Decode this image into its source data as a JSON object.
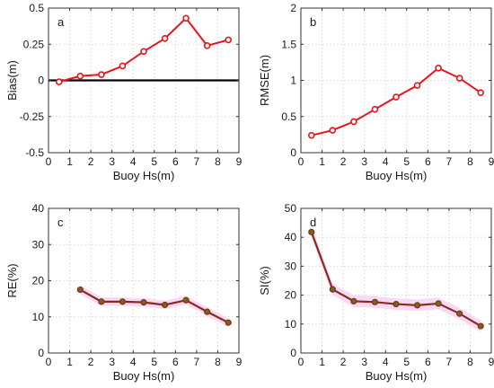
{
  "colors": {
    "red_line": "#e8141b",
    "brown_line": "#8b2a1c",
    "olive_marker": "#6b6b1a",
    "band": "#f7d4f5",
    "zero_line": "#000000"
  },
  "chart_data": [
    {
      "type": "line",
      "panel_label": "a",
      "xlabel": "Buoy Hs(m)",
      "ylabel": "Bias(m)",
      "xlim": [
        0,
        9
      ],
      "ylim": [
        -0.5,
        0.5
      ],
      "xticks": [
        0,
        1,
        2,
        3,
        4,
        5,
        6,
        7,
        8,
        9
      ],
      "yticks": [
        -0.5,
        -0.25,
        0,
        0.25,
        0.5
      ],
      "ytick_labels": [
        "-0.5",
        "-0.25",
        "0",
        "0.25",
        "0.5"
      ],
      "grid": true,
      "zero_line": true,
      "style": "red",
      "x": [
        0.5,
        1.5,
        2.5,
        3.5,
        4.5,
        5.5,
        6.5,
        7.5,
        8.5
      ],
      "y": [
        -0.01,
        0.03,
        0.04,
        0.1,
        0.2,
        0.29,
        0.43,
        0.24,
        0.28
      ]
    },
    {
      "type": "line",
      "panel_label": "b",
      "xlabel": "Buoy Hs(m)",
      "ylabel": "RMSE(m)",
      "xlim": [
        0,
        9
      ],
      "ylim": [
        0,
        2
      ],
      "xticks": [
        0,
        1,
        2,
        3,
        4,
        5,
        6,
        7,
        8,
        9
      ],
      "yticks": [
        0,
        0.5,
        1,
        1.5,
        2
      ],
      "ytick_labels": [
        "0",
        "0.5",
        "1",
        "1.5",
        "2"
      ],
      "grid": true,
      "style": "red",
      "x": [
        0.5,
        1.5,
        2.5,
        3.5,
        4.5,
        5.5,
        6.5,
        7.5,
        8.5
      ],
      "y": [
        0.24,
        0.31,
        0.43,
        0.6,
        0.77,
        0.93,
        1.17,
        1.03,
        0.83
      ]
    },
    {
      "type": "line",
      "panel_label": "c",
      "xlabel": "Buoy Hs(m)",
      "ylabel": "RE(%)",
      "xlim": [
        0,
        9
      ],
      "ylim": [
        0,
        40
      ],
      "xticks": [
        0,
        1,
        2,
        3,
        4,
        5,
        6,
        7,
        8,
        9
      ],
      "yticks": [
        0,
        10,
        20,
        30,
        40
      ],
      "ytick_labels": [
        "0",
        "10",
        "20",
        "30",
        "40"
      ],
      "grid": true,
      "style": "brown",
      "band_halfwidth": 1.2,
      "x": [
        1.5,
        2.5,
        3.5,
        4.5,
        5.5,
        6.5,
        7.5,
        8.5
      ],
      "y": [
        17.5,
        14.2,
        14.2,
        14.0,
        13.3,
        14.6,
        11.4,
        8.4
      ]
    },
    {
      "type": "line",
      "panel_label": "d",
      "xlabel": "Buoy Hs(m)",
      "ylabel": "SI(%)",
      "xlim": [
        0,
        9
      ],
      "ylim": [
        0,
        50
      ],
      "xticks": [
        0,
        1,
        2,
        3,
        4,
        5,
        6,
        7,
        8,
        9
      ],
      "yticks": [
        0,
        10,
        20,
        30,
        40,
        50
      ],
      "ytick_labels": [
        "0",
        "10",
        "20",
        "30",
        "40",
        "50"
      ],
      "grid": true,
      "style": "brown",
      "band_halfwidth": 2.0,
      "x": [
        0.5,
        1.5,
        2.5,
        3.5,
        4.5,
        5.5,
        6.5,
        7.5,
        8.5
      ],
      "y": [
        41.8,
        22.0,
        17.9,
        17.6,
        16.9,
        16.5,
        17.1,
        13.6,
        9.3
      ]
    }
  ]
}
